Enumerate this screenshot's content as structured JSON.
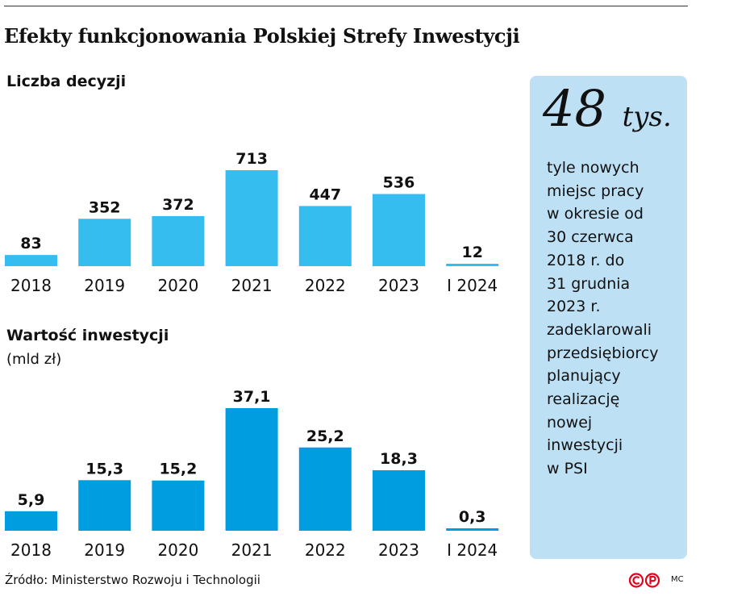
{
  "title": "Efekty funkcjonowania Polskiej Strefy Inwestycji",
  "chart_data": [
    {
      "type": "bar",
      "title": "Liczba decyzji",
      "subtitle": "",
      "categories": [
        "2018",
        "2019",
        "2020",
        "2021",
        "2022",
        "2023",
        "I 2024"
      ],
      "values": [
        83,
        352,
        372,
        713,
        447,
        536,
        12
      ],
      "labels": [
        "83",
        "352",
        "372",
        "713",
        "447",
        "536",
        "12"
      ],
      "ylim": [
        0,
        713
      ],
      "color": "#35bdef",
      "grid": false,
      "legend": "none"
    },
    {
      "type": "bar",
      "title": "Wartość inwestycji",
      "subtitle": "(mld zł)",
      "categories": [
        "2018",
        "2019",
        "2020",
        "2021",
        "2022",
        "2023",
        "I 2024"
      ],
      "values": [
        5.9,
        15.3,
        15.2,
        37.1,
        25.2,
        18.3,
        0.3
      ],
      "labels": [
        "5,9",
        "15,3",
        "15,2",
        "37,1",
        "25,2",
        "18,3",
        "0,3"
      ],
      "ylim": [
        0,
        37.1
      ],
      "color": "#009ee0",
      "grid": false,
      "legend": "none"
    }
  ],
  "info_box": {
    "number": "48",
    "unit": "tys.",
    "text": "tyle nowych\nmiejsc pracy\nw okresie od\n30 czerwca\n2018 r. do\n31 grudnia\n2023 r.\nzadeklarowali\nprzedsiębiorcy\nplanujący\nrealizację\nnowej\ninwestycji\nw PSI",
    "background": "#bde0f5"
  },
  "source": "Źródło: Ministerstwo Rozwoju i Technologii",
  "logo": {
    "text": "CP",
    "color": "#e3001b"
  },
  "author": "MC"
}
